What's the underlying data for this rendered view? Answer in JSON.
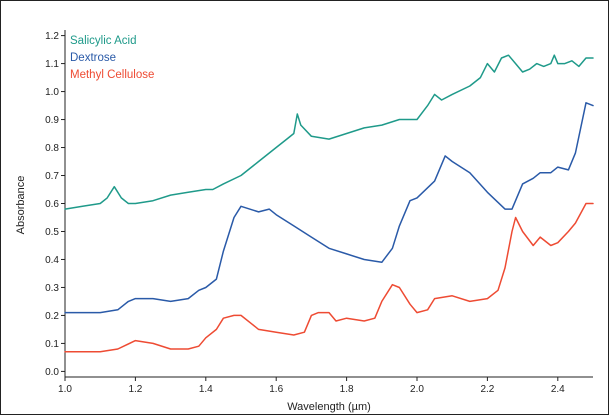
{
  "chart_data": {
    "type": "line",
    "title": "",
    "xlabel": "Wavelength (µm)",
    "ylabel": "Absorbance",
    "xlim": [
      1.0,
      2.5
    ],
    "ylim": [
      -0.02,
      1.22
    ],
    "grid": false,
    "legend_position": "top-left",
    "x_ticks": [
      "1.0",
      "1.2",
      "1.4",
      "1.6",
      "1.8",
      "2.0",
      "2.2",
      "2.4"
    ],
    "y_ticks": [
      "0.0",
      "0.1",
      "0.2",
      "0.3",
      "0.4",
      "0.5",
      "0.6",
      "0.7",
      "0.8",
      "0.9",
      "1.0",
      "1.1",
      "1.2"
    ],
    "series": [
      {
        "name": "Salicylic Acid",
        "color": "#1f9a8a",
        "x": [
          1.0,
          1.05,
          1.1,
          1.12,
          1.14,
          1.16,
          1.18,
          1.2,
          1.25,
          1.3,
          1.35,
          1.4,
          1.42,
          1.45,
          1.5,
          1.55,
          1.6,
          1.63,
          1.65,
          1.66,
          1.67,
          1.7,
          1.75,
          1.8,
          1.85,
          1.9,
          1.95,
          2.0,
          2.03,
          2.05,
          2.07,
          2.1,
          2.15,
          2.18,
          2.2,
          2.22,
          2.24,
          2.26,
          2.28,
          2.3,
          2.32,
          2.34,
          2.36,
          2.38,
          2.39,
          2.4,
          2.42,
          2.44,
          2.46,
          2.48,
          2.5
        ],
        "y": [
          0.58,
          0.59,
          0.6,
          0.62,
          0.66,
          0.62,
          0.6,
          0.6,
          0.61,
          0.63,
          0.64,
          0.65,
          0.65,
          0.67,
          0.7,
          0.75,
          0.8,
          0.83,
          0.85,
          0.92,
          0.88,
          0.84,
          0.83,
          0.85,
          0.87,
          0.88,
          0.9,
          0.9,
          0.95,
          0.99,
          0.97,
          0.99,
          1.02,
          1.05,
          1.1,
          1.07,
          1.12,
          1.13,
          1.1,
          1.07,
          1.08,
          1.1,
          1.09,
          1.1,
          1.13,
          1.1,
          1.1,
          1.11,
          1.09,
          1.12,
          1.12
        ]
      },
      {
        "name": "Dextrose",
        "color": "#2a5aa8",
        "x": [
          1.0,
          1.05,
          1.1,
          1.15,
          1.18,
          1.2,
          1.25,
          1.3,
          1.35,
          1.38,
          1.4,
          1.43,
          1.45,
          1.48,
          1.5,
          1.55,
          1.58,
          1.6,
          1.65,
          1.7,
          1.75,
          1.8,
          1.85,
          1.9,
          1.93,
          1.95,
          1.98,
          2.0,
          2.05,
          2.08,
          2.1,
          2.15,
          2.2,
          2.25,
          2.27,
          2.3,
          2.33,
          2.35,
          2.38,
          2.4,
          2.43,
          2.45,
          2.48,
          2.5
        ],
        "y": [
          0.21,
          0.21,
          0.21,
          0.22,
          0.25,
          0.26,
          0.26,
          0.25,
          0.26,
          0.29,
          0.3,
          0.33,
          0.43,
          0.55,
          0.59,
          0.57,
          0.58,
          0.56,
          0.52,
          0.48,
          0.44,
          0.42,
          0.4,
          0.39,
          0.44,
          0.52,
          0.61,
          0.62,
          0.68,
          0.77,
          0.75,
          0.71,
          0.64,
          0.58,
          0.58,
          0.67,
          0.69,
          0.71,
          0.71,
          0.73,
          0.72,
          0.78,
          0.96,
          0.95
        ]
      },
      {
        "name": "Methyl Cellulose",
        "color": "#ee4b33",
        "x": [
          1.0,
          1.05,
          1.1,
          1.15,
          1.2,
          1.25,
          1.3,
          1.35,
          1.38,
          1.4,
          1.43,
          1.45,
          1.48,
          1.5,
          1.53,
          1.55,
          1.6,
          1.65,
          1.68,
          1.7,
          1.72,
          1.75,
          1.77,
          1.8,
          1.85,
          1.88,
          1.9,
          1.93,
          1.95,
          1.98,
          2.0,
          2.03,
          2.05,
          2.1,
          2.15,
          2.2,
          2.23,
          2.25,
          2.27,
          2.28,
          2.3,
          2.33,
          2.35,
          2.38,
          2.4,
          2.43,
          2.45,
          2.48,
          2.5
        ],
        "y": [
          0.07,
          0.07,
          0.07,
          0.08,
          0.11,
          0.1,
          0.08,
          0.08,
          0.09,
          0.12,
          0.15,
          0.19,
          0.2,
          0.2,
          0.17,
          0.15,
          0.14,
          0.13,
          0.14,
          0.2,
          0.21,
          0.21,
          0.18,
          0.19,
          0.18,
          0.19,
          0.25,
          0.31,
          0.3,
          0.24,
          0.21,
          0.22,
          0.26,
          0.27,
          0.25,
          0.26,
          0.29,
          0.37,
          0.5,
          0.55,
          0.5,
          0.45,
          0.48,
          0.45,
          0.46,
          0.5,
          0.53,
          0.6,
          0.6
        ]
      }
    ]
  }
}
